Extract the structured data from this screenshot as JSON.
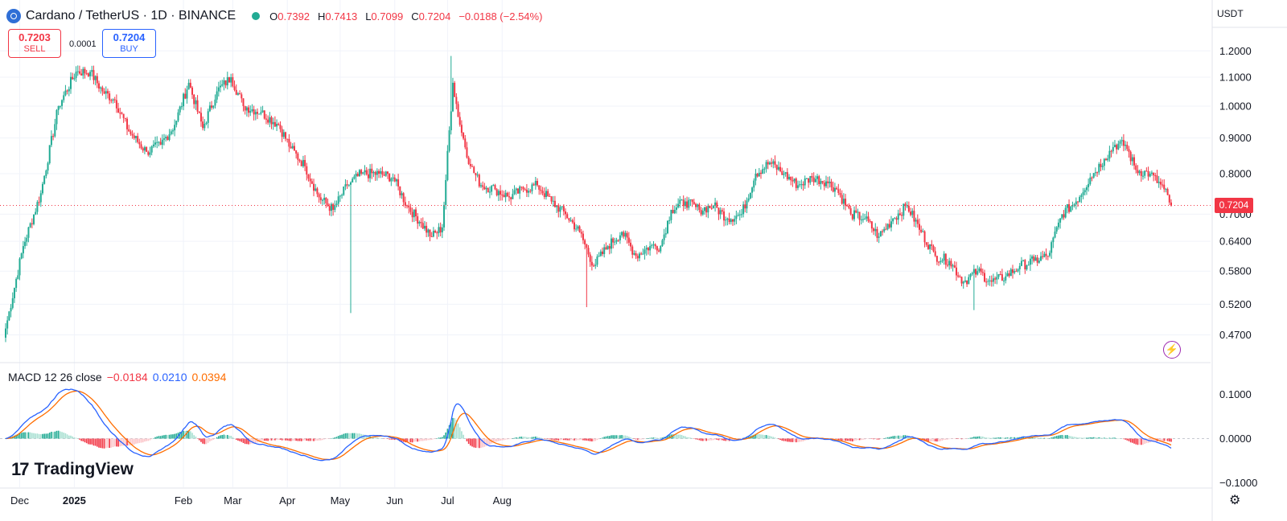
{
  "header": {
    "title": "Cardano / TetherUS · 1D · BINANCE",
    "ohlc": {
      "o_label": "O",
      "o": "0.7392",
      "h_label": "H",
      "h": "0.7413",
      "l_label": "L",
      "l": "0.7099",
      "c_label": "C",
      "c": "0.7204",
      "change": "−0.0188 (−2.54%)"
    }
  },
  "trade": {
    "sell_price": "0.7203",
    "sell_label": "SELL",
    "spread": "0.0001",
    "buy_price": "0.7204",
    "buy_label": "BUY"
  },
  "currency": "USDT",
  "last_price": "0.7204",
  "macd_legend": {
    "label": "MACD 12 26 close",
    "hist": "−0.0184",
    "macd": "0.0210",
    "signal": "0.0394"
  },
  "logo": {
    "mark": "17",
    "text": "TradingView"
  },
  "colors": {
    "up": "#22ab94",
    "down": "#f23645",
    "macd": "#2962ff",
    "signal": "#ff6d00",
    "hist_up": "#22ab94",
    "hist_down": "#f23645"
  },
  "chart_data": [
    {
      "type": "candlestick",
      "title": "Cardano / TetherUS · 1D · BINANCE",
      "xlabel": "",
      "ylabel": "",
      "x_ticks": [
        "Dec",
        "2025",
        "Feb",
        "Mar",
        "Apr",
        "May",
        "Jun",
        "Jul",
        "Aug"
      ],
      "y_ticks": [
        "1.2000",
        "1.1000",
        "1.0000",
        "0.9000",
        "0.8000",
        "0.7000",
        "0.6400",
        "0.5800",
        "0.5200",
        "0.4700"
      ],
      "y_scale": "log",
      "ylim": [
        0.43,
        1.29
      ],
      "grid": true,
      "current_price": 0.7204,
      "anchor_closes": [
        [
          0,
          0.48
        ],
        [
          10,
          0.63
        ],
        [
          20,
          0.75
        ],
        [
          30,
          1.0
        ],
        [
          40,
          1.12
        ],
        [
          48,
          1.12
        ],
        [
          55,
          1.05
        ],
        [
          62,
          1.02
        ],
        [
          70,
          0.92
        ],
        [
          80,
          0.86
        ],
        [
          88,
          0.88
        ],
        [
          96,
          0.94
        ],
        [
          104,
          1.08
        ],
        [
          112,
          0.93
        ],
        [
          120,
          1.05
        ],
        [
          128,
          1.1
        ],
        [
          135,
          1.0
        ],
        [
          145,
          0.98
        ],
        [
          155,
          0.94
        ],
        [
          162,
          0.87
        ],
        [
          170,
          0.82
        ],
        [
          178,
          0.74
        ],
        [
          186,
          0.71
        ],
        [
          194,
          0.77
        ],
        [
          202,
          0.8
        ],
        [
          212,
          0.8
        ],
        [
          220,
          0.79
        ],
        [
          228,
          0.72
        ],
        [
          236,
          0.68
        ],
        [
          242,
          0.65
        ],
        [
          248,
          0.67
        ],
        [
          254,
          1.08
        ],
        [
          258,
          0.94
        ],
        [
          264,
          0.82
        ],
        [
          270,
          0.77
        ],
        [
          278,
          0.76
        ],
        [
          286,
          0.74
        ],
        [
          294,
          0.76
        ],
        [
          302,
          0.77
        ],
        [
          310,
          0.73
        ],
        [
          318,
          0.7
        ],
        [
          326,
          0.66
        ],
        [
          334,
          0.59
        ],
        [
          342,
          0.63
        ],
        [
          350,
          0.66
        ],
        [
          358,
          0.61
        ],
        [
          366,
          0.63
        ],
        [
          372,
          0.63
        ],
        [
          378,
          0.71
        ],
        [
          386,
          0.73
        ],
        [
          394,
          0.71
        ],
        [
          402,
          0.72
        ],
        [
          410,
          0.69
        ],
        [
          418,
          0.7
        ],
        [
          426,
          0.8
        ],
        [
          434,
          0.83
        ],
        [
          442,
          0.8
        ],
        [
          450,
          0.77
        ],
        [
          458,
          0.79
        ],
        [
          466,
          0.78
        ],
        [
          472,
          0.76
        ],
        [
          480,
          0.7
        ],
        [
          488,
          0.69
        ],
        [
          496,
          0.65
        ],
        [
          504,
          0.69
        ],
        [
          512,
          0.72
        ],
        [
          520,
          0.66
        ],
        [
          528,
          0.61
        ],
        [
          536,
          0.6
        ],
        [
          544,
          0.56
        ],
        [
          552,
          0.58
        ],
        [
          560,
          0.56
        ],
        [
          568,
          0.57
        ],
        [
          576,
          0.59
        ],
        [
          584,
          0.6
        ],
        [
          592,
          0.61
        ],
        [
          600,
          0.7
        ],
        [
          608,
          0.73
        ],
        [
          616,
          0.79
        ],
        [
          624,
          0.84
        ],
        [
          630,
          0.88
        ],
        [
          636,
          0.88
        ],
        [
          642,
          0.81
        ],
        [
          650,
          0.8
        ],
        [
          658,
          0.76
        ],
        [
          662,
          0.7204
        ]
      ],
      "spikes": [
        {
          "day": 196,
          "low": 0.505
        },
        {
          "day": 253,
          "high": 1.18
        },
        {
          "day": 330,
          "low": 0.515
        },
        {
          "day": 550,
          "low": 0.51
        }
      ]
    },
    {
      "type": "line",
      "title": "MACD 12 26 close",
      "y_ticks": [
        "0.1000",
        "0.0000",
        "−0.1000"
      ],
      "ylim": [
        -0.11,
        0.17
      ],
      "series": [
        {
          "name": "MACD",
          "derived_from": "closes"
        },
        {
          "name": "Signal",
          "derived_from": "closes"
        },
        {
          "name": "Histogram",
          "derived_from": "closes"
        }
      ]
    }
  ]
}
